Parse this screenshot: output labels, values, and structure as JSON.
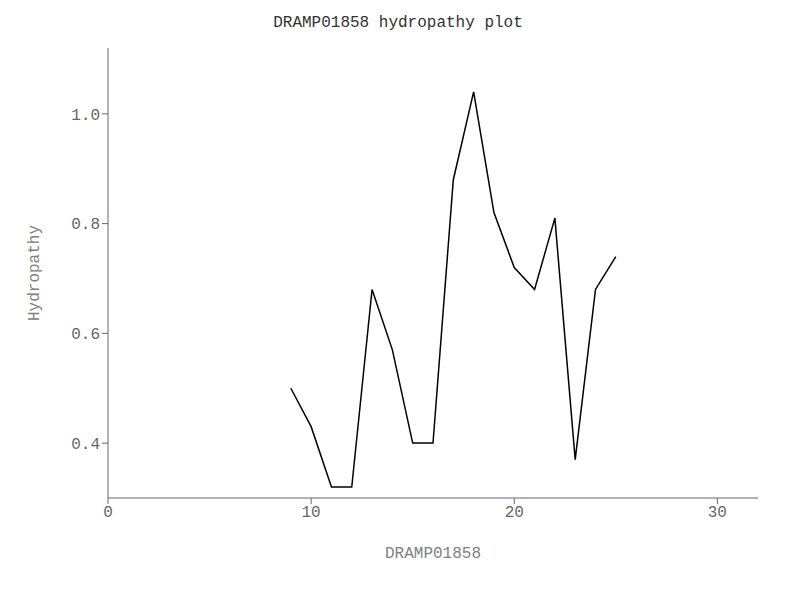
{
  "chart_data": {
    "type": "line",
    "title": "DRAMP01858 hydropathy plot",
    "xlabel": "DRAMP01858",
    "ylabel": "Hydropathy",
    "x": [
      9,
      10,
      11,
      12,
      13,
      14,
      15,
      16,
      17,
      18,
      19,
      20,
      21,
      22,
      23,
      24,
      25
    ],
    "values": [
      0.5,
      0.43,
      0.32,
      0.32,
      0.68,
      0.57,
      0.4,
      0.4,
      0.88,
      1.04,
      0.82,
      0.72,
      0.68,
      0.81,
      0.37,
      0.68,
      0.74
    ],
    "color": "black",
    "xlim": [
      0,
      32
    ],
    "ylim": [
      0.3,
      1.12
    ],
    "xticks": [
      0,
      10,
      20,
      30
    ],
    "yticks": [
      0.4,
      0.6,
      0.8,
      {
        "value": 1.0,
        "label": "1.0"
      }
    ],
    "grid": false
  }
}
